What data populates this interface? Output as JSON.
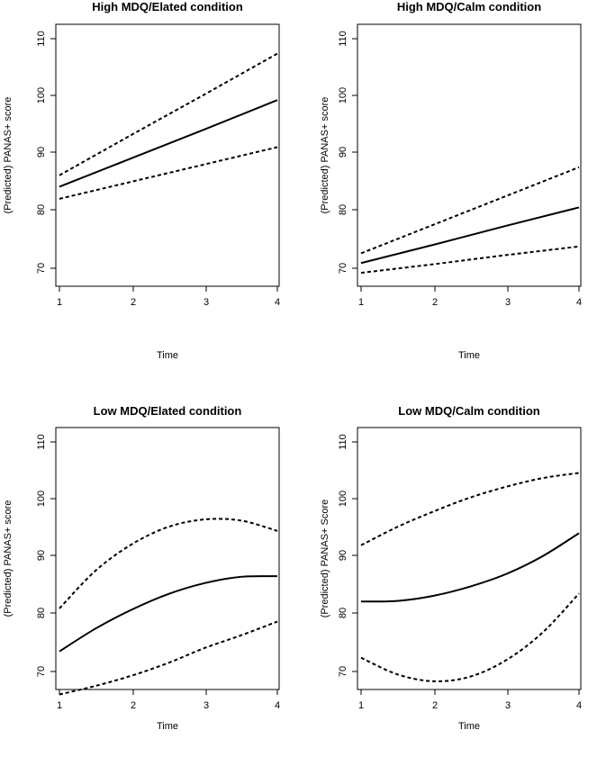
{
  "chart_data": [
    {
      "type": "line",
      "title": "High MDQ/Elated condition",
      "xlabel": "Time",
      "ylabel": "(Predicted) PANAS+ score",
      "xlim": [
        1,
        4
      ],
      "ylim": [
        64,
        111
      ],
      "xticks": [
        "1",
        "2",
        "3",
        "4"
      ],
      "yticks": [
        "70",
        "80",
        "90",
        "100",
        "110"
      ],
      "series": [
        {
          "style": "dashed",
          "x": [
            1,
            2,
            3,
            4
          ],
          "y": [
            86.2,
            93.3,
            100.3,
            107.4
          ]
        },
        {
          "style": "solid",
          "x": [
            1,
            2,
            3,
            4
          ],
          "y": [
            84.2,
            89.2,
            94.2,
            99.3
          ]
        },
        {
          "style": "dashed",
          "x": [
            1,
            2,
            3,
            4
          ],
          "y": [
            82.1,
            85.1,
            88.1,
            91.1
          ]
        }
      ]
    },
    {
      "type": "line",
      "title": "High MDQ/Calm condition",
      "xlabel": "Time",
      "ylabel": "(Predicted) PANAS+ score",
      "xlim": [
        1,
        4
      ],
      "ylim": [
        64,
        111
      ],
      "xticks": [
        "1",
        "2",
        "3",
        "4"
      ],
      "yticks": [
        "70",
        "80",
        "90",
        "100",
        "110"
      ],
      "series": [
        {
          "style": "dashed",
          "x": [
            1,
            2,
            3,
            4
          ],
          "y": [
            72.6,
            77.6,
            82.6,
            87.6
          ]
        },
        {
          "style": "solid",
          "x": [
            1,
            2,
            3,
            4
          ],
          "y": [
            70.9,
            74.1,
            77.4,
            80.6
          ]
        },
        {
          "style": "dashed",
          "x": [
            1,
            2,
            3,
            4
          ],
          "y": [
            69.2,
            70.7,
            72.3,
            73.8
          ]
        }
      ]
    },
    {
      "type": "line",
      "title": "Low MDQ/Elated condition",
      "xlabel": "Time",
      "ylabel": "(Predicted) PANAS+ score",
      "xlim": [
        1,
        4
      ],
      "ylim": [
        64,
        111
      ],
      "xticks": [
        "1",
        "2",
        "3",
        "4"
      ],
      "yticks": [
        "70",
        "80",
        "90",
        "100",
        "110"
      ],
      "series": [
        {
          "style": "dashed",
          "x": [
            1,
            1.5,
            2,
            2.5,
            3,
            3.5,
            4
          ],
          "y": [
            81.0,
            87.6,
            92.2,
            95.2,
            96.5,
            96.3,
            94.5
          ]
        },
        {
          "style": "solid",
          "x": [
            1,
            1.5,
            2,
            2.5,
            3,
            3.5,
            4
          ],
          "y": [
            73.5,
            77.5,
            80.8,
            83.5,
            85.4,
            86.5,
            86.6
          ]
        },
        {
          "style": "dashed",
          "x": [
            1,
            1.5,
            2,
            2.5,
            3,
            3.5,
            4
          ],
          "y": [
            66.0,
            67.5,
            69.3,
            71.5,
            74.1,
            76.3,
            78.7
          ]
        }
      ]
    },
    {
      "type": "line",
      "title": "Low MDQ/Calm condition",
      "xlabel": "Time",
      "ylabel": "(Predicted) PANAS+ Score",
      "xlim": [
        1,
        4
      ],
      "ylim": [
        64,
        111
      ],
      "xticks": [
        "1",
        "2",
        "3",
        "4"
      ],
      "yticks": [
        "70",
        "80",
        "90",
        "100",
        "110"
      ],
      "series": [
        {
          "style": "dashed",
          "x": [
            1,
            1.5,
            2,
            2.5,
            3,
            3.5,
            4
          ],
          "y": [
            92.0,
            95.2,
            97.9,
            100.3,
            102.2,
            103.7,
            104.6
          ]
        },
        {
          "style": "solid",
          "x": [
            1,
            1.5,
            2,
            2.5,
            3,
            3.5,
            4
          ],
          "y": [
            82.2,
            82.3,
            83.2,
            84.8,
            87.0,
            90.1,
            94.1
          ]
        },
        {
          "style": "dashed",
          "x": [
            1,
            1.5,
            2,
            2.5,
            3,
            3.5,
            4
          ],
          "y": [
            72.4,
            69.5,
            68.3,
            69.1,
            72.0,
            76.8,
            83.6
          ]
        }
      ]
    }
  ]
}
